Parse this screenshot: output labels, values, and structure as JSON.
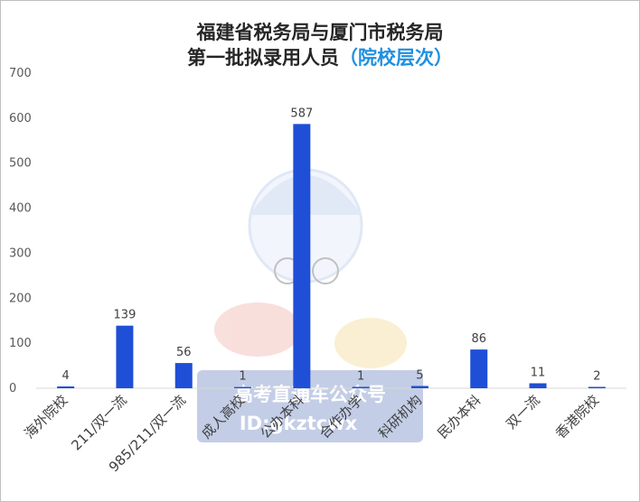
{
  "chart_data": {
    "type": "bar",
    "title_line1": "福建省税务局与厦门市税务局",
    "title_line2": "第一批拟录用人员",
    "title_highlight": "（院校层次）",
    "categories": [
      "海外院校",
      "211/双一流",
      "985/211/双一流",
      "成人高校",
      "公办本科",
      "合作办学",
      "科研机构",
      "民办本科",
      "双一流",
      "香港院校"
    ],
    "values": [
      4,
      139,
      56,
      1,
      587,
      1,
      5,
      86,
      11,
      2
    ],
    "ylim": [
      0,
      700
    ],
    "yticks": [
      0,
      100,
      200,
      300,
      400,
      500,
      600,
      700
    ],
    "grid": false,
    "bar_color": "#1f4fd6",
    "accent_color": "#1f8fe0"
  },
  "watermark": {
    "line1": "高考直通车公众号",
    "line2": "ID:gkztcwx"
  }
}
